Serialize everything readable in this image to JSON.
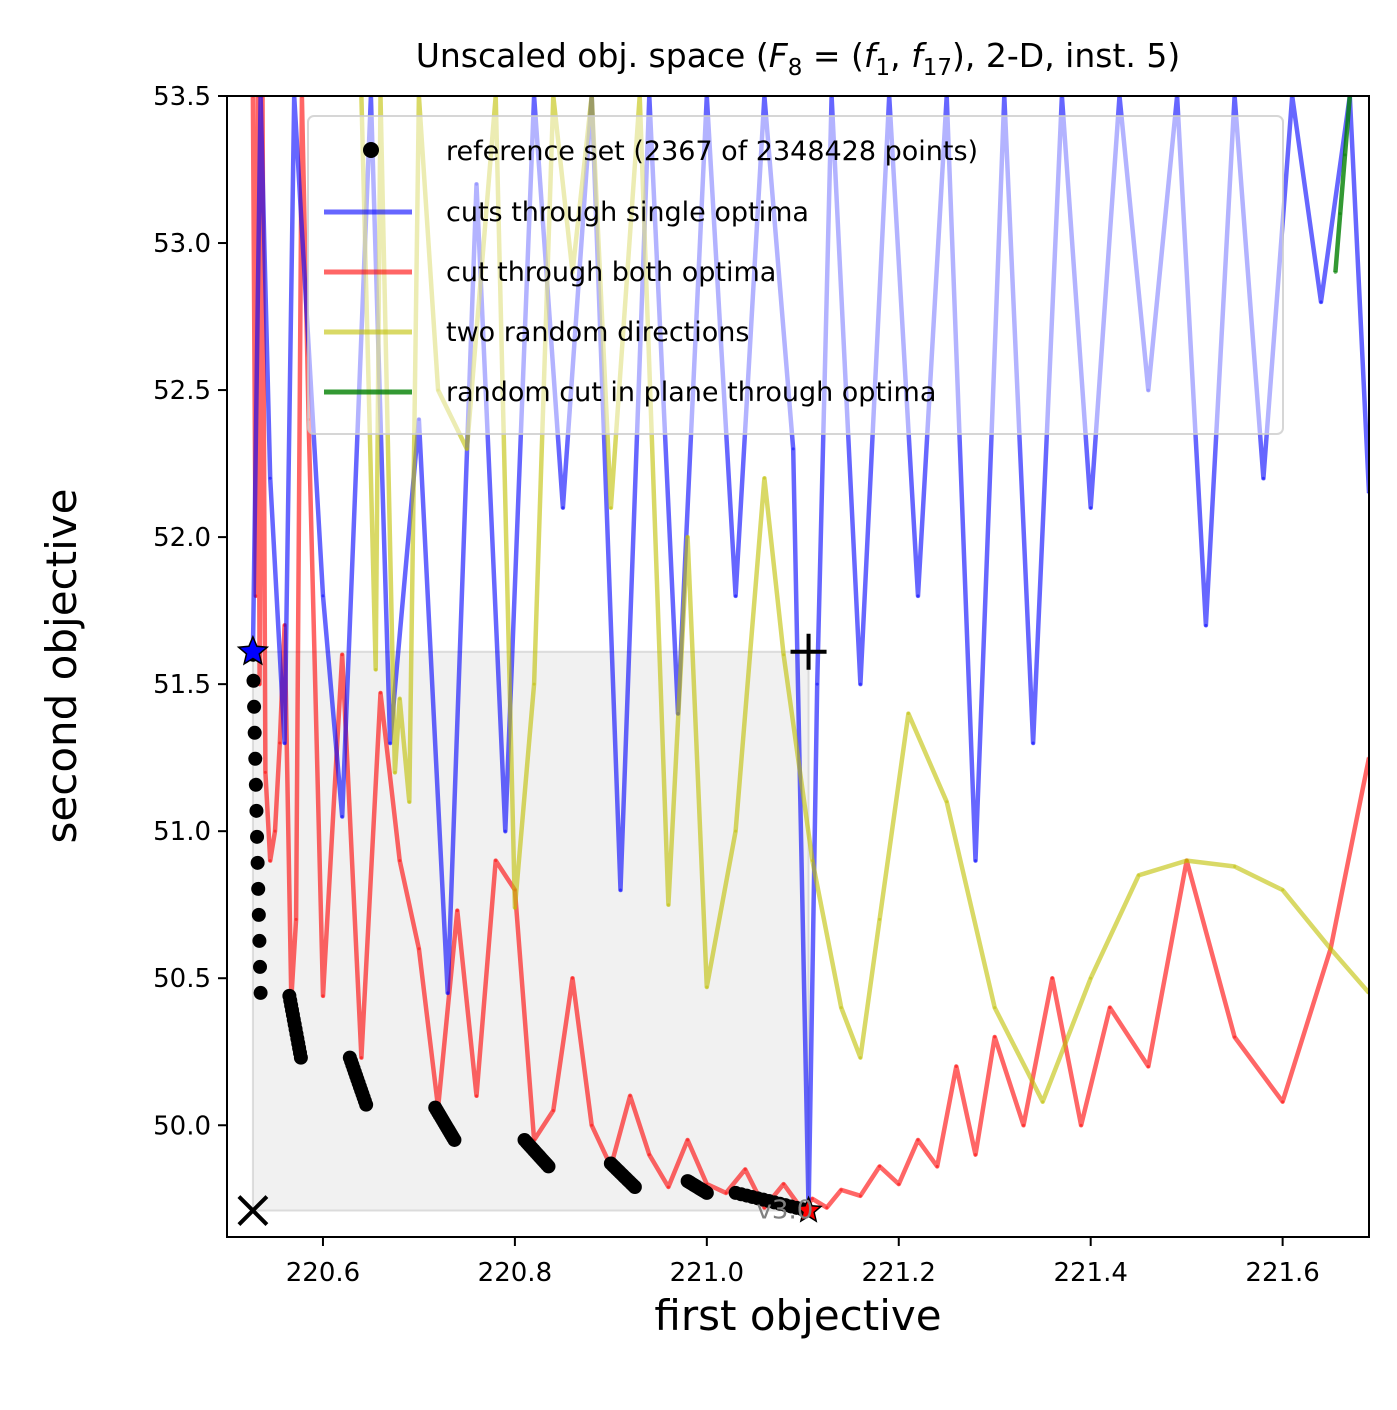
{
  "chart_data": {
    "type": "line",
    "title": "Unscaled obj. space (F_8 = (f_1, f_17), 2-D, inst. 5)",
    "title_parts": {
      "prefix": "Unscaled obj. space (",
      "F": "F",
      "F_sub": "8",
      "eq": " = (",
      "f": "f",
      "f1_sub": "1",
      "comma": ", ",
      "f17_sub": "17",
      "suffix": "), 2-D, inst. 5)"
    },
    "xlabel": "first objective",
    "ylabel": "second objective",
    "xlim": [
      220.5,
      221.69
    ],
    "ylim": [
      49.62,
      53.5
    ],
    "x_ticks": [
      220.6,
      220.8,
      221.0,
      221.2,
      221.4,
      221.6
    ],
    "x_tick_labels": [
      "220.6",
      "220.8",
      "221.0",
      "221.2",
      "221.4",
      "221.6"
    ],
    "y_ticks": [
      50.0,
      50.5,
      51.0,
      51.5,
      52.0,
      52.5,
      53.0,
      53.5
    ],
    "y_tick_labels": [
      "50.0",
      "50.5",
      "51.0",
      "51.5",
      "52.0",
      "52.5",
      "53.0",
      "53.5"
    ],
    "grid": false,
    "legend_position": "upper center",
    "legend": [
      {
        "label": "reference set (2367 of 2348428 points)",
        "color": "#000000",
        "kind": "marker"
      },
      {
        "label": "cuts through single optima",
        "color": "#0000ff",
        "kind": "line"
      },
      {
        "label": "cut through both optima",
        "color": "#ff0000",
        "kind": "line"
      },
      {
        "label": "two random directions",
        "color": "#bfbf00",
        "kind": "line"
      },
      {
        "label": "random cut in plane through optima",
        "color": "#008000",
        "kind": "line"
      }
    ],
    "ideal_point": {
      "x": 220.527,
      "y": 49.71
    },
    "nadir_point": {
      "x": 221.106,
      "y": 51.61
    },
    "extreme_point_f1": {
      "x": 220.527,
      "y": 51.61
    },
    "extreme_point_f2": {
      "x": 221.106,
      "y": 49.71
    },
    "version_label": "v3.0",
    "reference_set": {
      "color": "#000000",
      "clusters": [
        {
          "x": [
            220.527,
            220.535
          ],
          "y": [
            51.6,
            50.45
          ]
        },
        {
          "x": [
            220.565,
            220.577
          ],
          "y": [
            50.44,
            50.23
          ]
        },
        {
          "x": [
            220.628,
            220.645
          ],
          "y": [
            50.23,
            50.07
          ]
        },
        {
          "x": [
            220.717,
            220.737
          ],
          "y": [
            50.06,
            49.95
          ]
        },
        {
          "x": [
            220.81,
            220.835
          ],
          "y": [
            49.95,
            49.86
          ]
        },
        {
          "x": [
            220.9,
            220.925
          ],
          "y": [
            49.87,
            49.79
          ]
        },
        {
          "x": [
            220.98,
            221.0
          ],
          "y": [
            49.81,
            49.77
          ]
        },
        {
          "x": [
            221.03,
            221.105
          ],
          "y": [
            49.77,
            49.71
          ]
        }
      ]
    },
    "series": [
      {
        "name": "cut through both optima",
        "color": "#ff0000",
        "x": [
          220.527,
          220.53,
          220.532,
          220.534,
          220.537,
          220.54,
          220.545,
          220.55,
          220.555,
          220.56,
          220.567,
          220.572,
          220.578,
          220.585,
          220.6,
          220.62,
          220.64,
          220.66,
          220.68,
          220.7,
          220.72,
          220.74,
          220.76,
          220.78,
          220.8,
          220.82,
          220.84,
          220.86,
          220.88,
          220.9,
          220.92,
          220.94,
          220.96,
          220.98,
          221.0,
          221.02,
          221.04,
          221.06,
          221.08,
          221.1,
          221.11,
          221.125,
          221.14,
          221.16,
          221.18,
          221.2,
          221.22,
          221.24,
          221.26,
          221.28,
          221.3,
          221.33,
          221.36,
          221.39,
          221.42,
          221.46,
          221.5,
          221.55,
          221.6,
          221.65,
          221.69
        ],
        "y": [
          53.5,
          51.8,
          53.5,
          51.5,
          53.5,
          51.2,
          50.9,
          51.0,
          51.3,
          51.7,
          50.43,
          50.7,
          53.5,
          52.4,
          50.44,
          51.6,
          50.23,
          51.47,
          50.9,
          50.6,
          50.06,
          50.73,
          50.1,
          50.9,
          50.8,
          49.95,
          50.05,
          50.5,
          50.0,
          49.86,
          50.1,
          49.9,
          49.79,
          49.95,
          49.8,
          49.77,
          49.85,
          49.72,
          49.8,
          49.71,
          49.75,
          49.72,
          49.78,
          49.76,
          49.86,
          49.8,
          49.95,
          49.86,
          50.2,
          49.9,
          50.3,
          50.0,
          50.5,
          50.0,
          50.4,
          50.2,
          50.9,
          50.3,
          50.08,
          50.6,
          51.25
        ]
      },
      {
        "name": "cuts through single optima",
        "color": "#0000ff",
        "x": [
          220.527,
          220.535,
          220.545,
          220.56,
          220.57,
          220.6,
          220.62,
          220.65,
          220.67,
          220.7,
          220.73,
          220.76,
          220.79,
          220.82,
          220.85,
          220.88,
          220.91,
          220.94,
          220.97,
          221.0,
          221.03,
          221.06,
          221.09,
          221.106,
          221.115,
          221.13,
          221.16,
          221.19,
          221.22,
          221.25,
          221.28,
          221.31,
          221.34,
          221.37,
          221.4,
          221.43,
          221.46,
          221.49,
          221.52,
          221.55,
          221.58,
          221.61,
          221.64,
          221.67,
          221.69
        ],
        "y": [
          51.6,
          53.5,
          52.2,
          51.3,
          53.5,
          51.8,
          51.05,
          53.5,
          51.3,
          52.4,
          50.45,
          53.2,
          51.0,
          53.5,
          52.1,
          53.5,
          50.8,
          53.5,
          51.4,
          53.5,
          51.8,
          53.5,
          52.3,
          49.71,
          51.5,
          53.5,
          51.5,
          53.5,
          51.8,
          53.5,
          50.9,
          53.5,
          51.3,
          53.5,
          52.1,
          53.5,
          52.5,
          53.5,
          51.7,
          53.5,
          52.2,
          53.5,
          52.8,
          53.5,
          52.15
        ]
      },
      {
        "name": "two random directions",
        "color": "#bfbf00",
        "x": [
          220.64,
          220.655,
          220.66,
          220.675,
          220.68,
          220.69,
          220.7,
          220.72,
          220.75,
          220.78,
          220.8,
          220.82,
          220.84,
          220.86,
          220.88,
          220.9,
          220.93,
          220.96,
          220.98,
          221.0,
          221.03,
          221.06,
          221.08,
          221.11,
          221.14,
          221.16,
          221.18,
          221.21,
          221.25,
          221.3,
          221.35,
          221.4,
          221.45,
          221.5,
          221.55,
          221.6,
          221.65,
          221.69
        ],
        "y": [
          53.5,
          51.55,
          53.5,
          51.2,
          51.45,
          51.1,
          53.5,
          52.5,
          52.3,
          53.5,
          50.74,
          51.5,
          53.5,
          52.9,
          53.5,
          52.1,
          53.5,
          50.75,
          52.0,
          50.47,
          51.0,
          52.2,
          51.6,
          50.9,
          50.4,
          50.23,
          50.7,
          51.4,
          51.1,
          50.4,
          50.08,
          50.5,
          50.85,
          50.9,
          50.88,
          50.8,
          50.6,
          50.45
        ]
      },
      {
        "name": "random cut in plane through optima",
        "color": "#008000",
        "x": [
          221.655,
          221.66,
          221.665,
          221.67
        ],
        "y": [
          52.9,
          53.1,
          53.3,
          53.5
        ]
      }
    ]
  }
}
